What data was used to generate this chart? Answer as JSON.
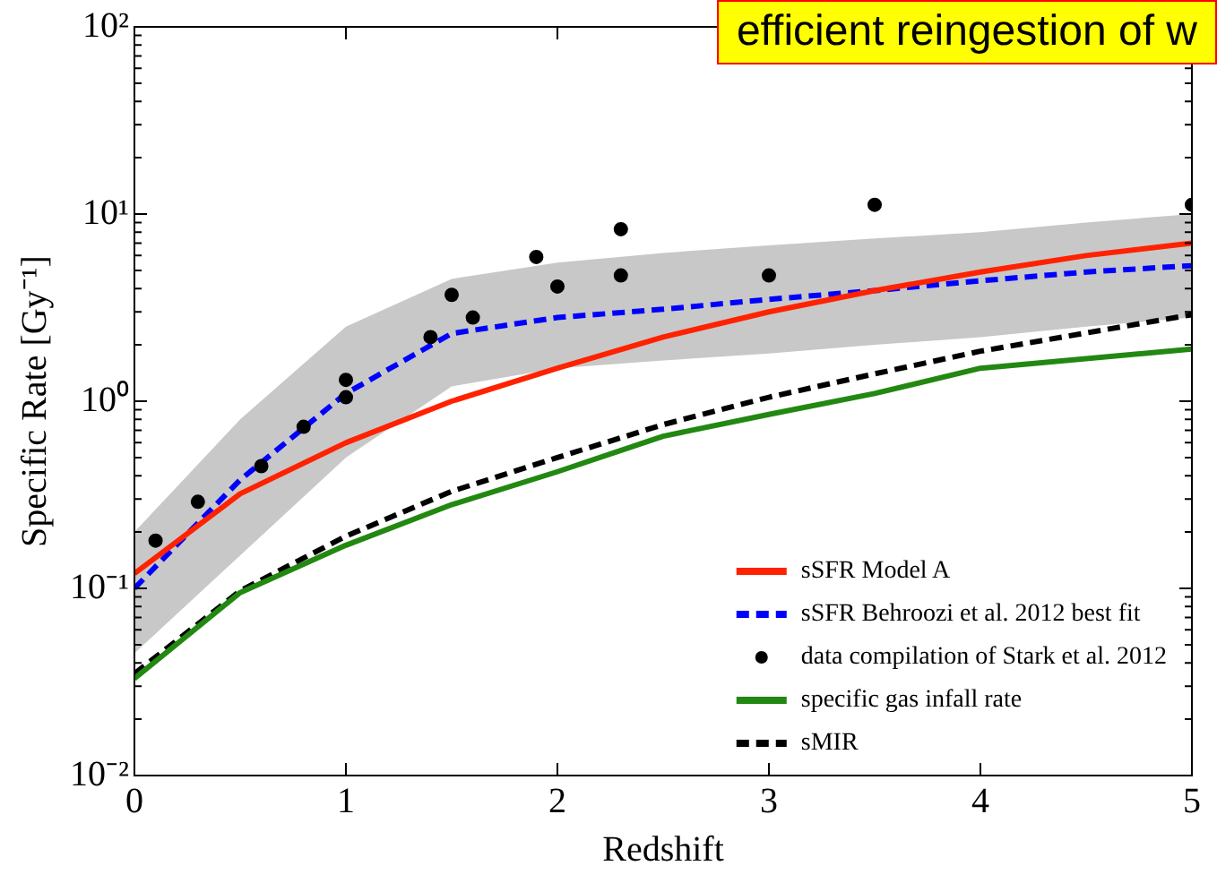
{
  "chart_data": {
    "type": "line",
    "xlabel": "Redshift",
    "ylabel": "Specific Rate [Gy⁻¹]",
    "log": "y",
    "annotations": [
      "efficient reingestion of w"
    ],
    "xlim": [
      0,
      5
    ],
    "xticks": [
      0,
      1,
      2,
      3,
      4,
      5
    ],
    "ylim": [
      0.01,
      100
    ],
    "yticks": [
      {
        "value": 0.01,
        "label": "10⁻²"
      },
      {
        "value": 0.02,
        "label": null
      },
      {
        "value": 0.03,
        "label": null
      },
      {
        "value": 0.04,
        "label": null
      },
      {
        "value": 0.05,
        "label": null
      },
      {
        "value": 0.06,
        "label": null
      },
      {
        "value": 0.07,
        "label": null
      },
      {
        "value": 0.08,
        "label": null
      },
      {
        "value": 0.09,
        "label": null
      },
      {
        "value": 0.1,
        "label": "10⁻¹"
      },
      {
        "value": 0.2,
        "label": null
      },
      {
        "value": 0.3,
        "label": null
      },
      {
        "value": 0.4,
        "label": null
      },
      {
        "value": 0.5,
        "label": null
      },
      {
        "value": 0.6,
        "label": null
      },
      {
        "value": 0.7,
        "label": null
      },
      {
        "value": 0.8,
        "label": null
      },
      {
        "value": 0.9,
        "label": null
      },
      {
        "value": 1,
        "label": "10⁰"
      },
      {
        "value": 2,
        "label": null
      },
      {
        "value": 3,
        "label": null
      },
      {
        "value": 4,
        "label": null
      },
      {
        "value": 5,
        "label": null
      },
      {
        "value": 6,
        "label": null
      },
      {
        "value": 7,
        "label": null
      },
      {
        "value": 8,
        "label": null
      },
      {
        "value": 9,
        "label": null
      },
      {
        "value": 10,
        "label": "10¹"
      },
      {
        "value": 20,
        "label": null
      },
      {
        "value": 30,
        "label": null
      },
      {
        "value": 40,
        "label": null
      },
      {
        "value": 50,
        "label": null
      },
      {
        "value": 60,
        "label": null
      },
      {
        "value": 70,
        "label": null
      },
      {
        "value": 80,
        "label": null
      },
      {
        "value": 90,
        "label": null
      },
      {
        "value": 100,
        "label": "10²"
      }
    ],
    "grid": false,
    "legend": "bottom right",
    "series": [
      {
        "name": "sSFR Model A",
        "color": "#ff2200",
        "line_style": "solid",
        "x": [
          0,
          0.5,
          1,
          1.5,
          2,
          2.5,
          3,
          3.5,
          4,
          4.5,
          5
        ],
        "values": [
          0.12,
          0.32,
          0.6,
          1.0,
          1.5,
          2.2,
          3.0,
          3.9,
          4.9,
          6.0,
          7.0
        ]
      },
      {
        "name": "sSFR Behroozi et al. 2012 best fit",
        "color": "#0000ff",
        "line_style": "dashed",
        "x": [
          0,
          0.5,
          1,
          1.5,
          2,
          2.5,
          3,
          3.5,
          4,
          4.5,
          5
        ],
        "values": [
          0.1,
          0.38,
          1.1,
          2.3,
          2.8,
          3.1,
          3.5,
          3.9,
          4.4,
          4.9,
          5.3
        ],
        "lower": [
          0.045,
          0.15,
          0.5,
          1.2,
          1.5,
          1.65,
          1.8,
          2.0,
          2.2,
          2.5,
          2.8
        ],
        "upper": [
          0.2,
          0.8,
          2.5,
          4.5,
          5.5,
          6.2,
          6.8,
          7.4,
          8.0,
          9.0,
          10
        ]
      },
      {
        "name": "data compilation of Stark et al. 2012",
        "type": "scatter",
        "color": "#000000",
        "marker": "circle",
        "x": [
          0.1,
          0.3,
          0.6,
          0.8,
          1.0,
          1.0,
          1.4,
          1.5,
          1.6,
          1.9,
          2.0,
          2.3,
          2.3,
          3.0,
          3.5,
          5.0
        ],
        "values": [
          0.18,
          0.29,
          0.45,
          0.73,
          1.05,
          1.3,
          2.2,
          3.7,
          2.8,
          5.9,
          4.1,
          8.3,
          4.7,
          4.7,
          11.2,
          11.2
        ]
      },
      {
        "name": "specific gas infall rate",
        "color": "#228811",
        "line_style": "solid",
        "x": [
          0,
          0.5,
          1,
          1.5,
          2,
          2.5,
          3,
          3.5,
          4,
          5
        ],
        "values": [
          0.033,
          0.095,
          0.17,
          0.28,
          0.42,
          0.65,
          0.85,
          1.1,
          1.5,
          1.9
        ]
      },
      {
        "name": "sMIR",
        "color": "#000000",
        "line_style": "dashed",
        "x": [
          0,
          0.5,
          1,
          1.5,
          2,
          2.5,
          3,
          3.5,
          4,
          5
        ],
        "values": [
          0.035,
          0.097,
          0.19,
          0.33,
          0.5,
          0.75,
          1.05,
          1.4,
          1.85,
          2.9
        ]
      }
    ]
  }
}
